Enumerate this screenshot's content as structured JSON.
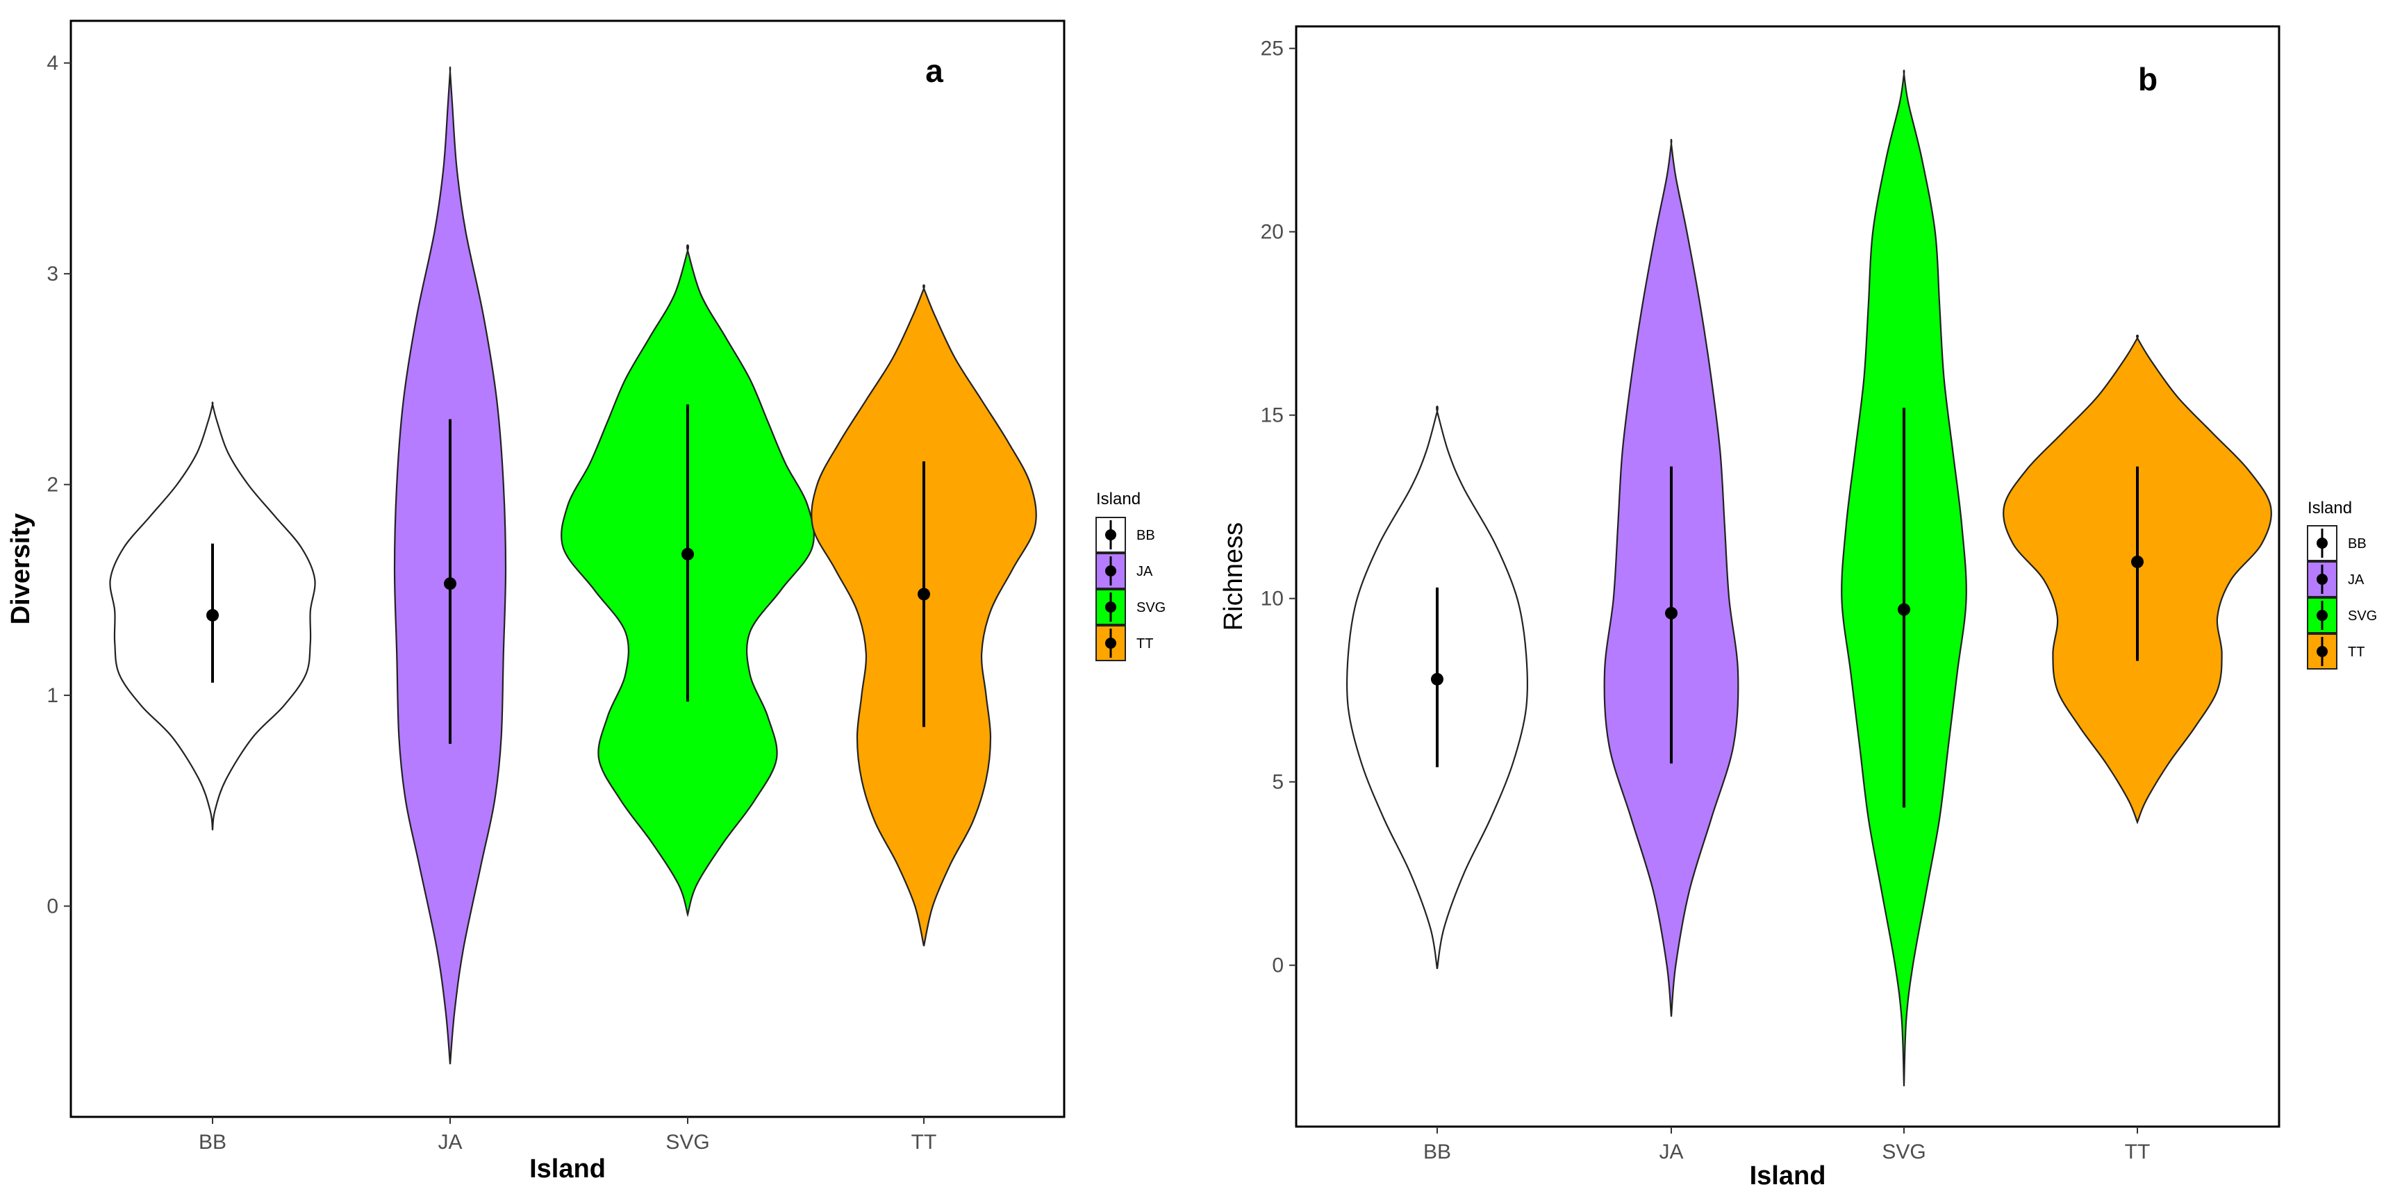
{
  "chart_data": [
    {
      "type": "violin",
      "panel_label": "a",
      "xlabel": "Island",
      "ylabel": "Diversity",
      "categories": [
        "BB",
        "JA",
        "SVG",
        "TT"
      ],
      "colors": [
        "#ffffff",
        "#b57cff",
        "#00ff00",
        "#ffa500"
      ],
      "ylim": [
        -1.0,
        4.2
      ],
      "yticks": [
        0,
        1,
        2,
        3,
        4
      ],
      "ytick_labels": [
        "0",
        "1",
        "2",
        "3",
        "4"
      ],
      "series": [
        {
          "name": "BB",
          "mean": 1.38,
          "err_low": 1.06,
          "err_high": 1.72,
          "min": 0.36,
          "max": 2.38,
          "profile": [
            [
              0.36,
              0.0
            ],
            [
              0.45,
              0.01
            ],
            [
              0.6,
              0.06
            ],
            [
              0.8,
              0.18
            ],
            [
              0.95,
              0.32
            ],
            [
              1.1,
              0.42
            ],
            [
              1.25,
              0.44
            ],
            [
              1.4,
              0.44
            ],
            [
              1.55,
              0.46
            ],
            [
              1.7,
              0.4
            ],
            [
              1.85,
              0.28
            ],
            [
              2.0,
              0.16
            ],
            [
              2.15,
              0.07
            ],
            [
              2.3,
              0.02
            ],
            [
              2.38,
              0.0
            ]
          ]
        },
        {
          "name": "JA",
          "mean": 1.53,
          "err_low": 0.77,
          "err_high": 2.31,
          "min": -0.75,
          "max": 3.96,
          "profile": [
            [
              -0.75,
              0.0
            ],
            [
              -0.5,
              0.02
            ],
            [
              -0.2,
              0.06
            ],
            [
              0.2,
              0.14
            ],
            [
              0.5,
              0.2
            ],
            [
              0.8,
              0.23
            ],
            [
              1.2,
              0.24
            ],
            [
              1.6,
              0.25
            ],
            [
              2.0,
              0.24
            ],
            [
              2.4,
              0.21
            ],
            [
              2.8,
              0.15
            ],
            [
              3.2,
              0.07
            ],
            [
              3.5,
              0.03
            ],
            [
              3.8,
              0.01
            ],
            [
              3.96,
              0.0
            ]
          ]
        },
        {
          "name": "SVG",
          "mean": 1.67,
          "err_low": 0.97,
          "err_high": 2.38,
          "min": -0.04,
          "max": 3.11,
          "profile": [
            [
              -0.04,
              0.0
            ],
            [
              0.1,
              0.04
            ],
            [
              0.3,
              0.16
            ],
            [
              0.5,
              0.3
            ],
            [
              0.7,
              0.4
            ],
            [
              0.9,
              0.36
            ],
            [
              1.1,
              0.28
            ],
            [
              1.3,
              0.28
            ],
            [
              1.5,
              0.42
            ],
            [
              1.7,
              0.56
            ],
            [
              1.9,
              0.54
            ],
            [
              2.1,
              0.44
            ],
            [
              2.3,
              0.36
            ],
            [
              2.5,
              0.28
            ],
            [
              2.7,
              0.17
            ],
            [
              2.9,
              0.06
            ],
            [
              3.11,
              0.0
            ]
          ]
        },
        {
          "name": "TT",
          "mean": 1.48,
          "err_low": 0.85,
          "err_high": 2.11,
          "min": -0.19,
          "max": 2.93,
          "profile": [
            [
              -0.19,
              0.0
            ],
            [
              0.0,
              0.04
            ],
            [
              0.2,
              0.12
            ],
            [
              0.4,
              0.22
            ],
            [
              0.6,
              0.28
            ],
            [
              0.8,
              0.3
            ],
            [
              1.0,
              0.28
            ],
            [
              1.2,
              0.26
            ],
            [
              1.4,
              0.3
            ],
            [
              1.6,
              0.4
            ],
            [
              1.8,
              0.5
            ],
            [
              2.0,
              0.48
            ],
            [
              2.2,
              0.38
            ],
            [
              2.4,
              0.26
            ],
            [
              2.6,
              0.14
            ],
            [
              2.8,
              0.05
            ],
            [
              2.93,
              0.0
            ]
          ]
        }
      ]
    },
    {
      "type": "violin",
      "panel_label": "b",
      "xlabel": "Island",
      "ylabel": "Richness",
      "categories": [
        "BB",
        "JA",
        "SVG",
        "TT"
      ],
      "colors": [
        "#ffffff",
        "#b57cff",
        "#00ff00",
        "#ffa500"
      ],
      "ylim": [
        -4.4,
        25.6
      ],
      "yticks": [
        0,
        5,
        10,
        15,
        20,
        25
      ],
      "ytick_labels": [
        "0",
        "5",
        "10",
        "15",
        "20",
        "25"
      ],
      "series": [
        {
          "name": "BB",
          "mean": 7.8,
          "err_low": 5.4,
          "err_high": 10.3,
          "min": -0.1,
          "max": 15.1,
          "profile": [
            [
              -0.1,
              0.0
            ],
            [
              1.0,
              0.03
            ],
            [
              2.5,
              0.12
            ],
            [
              4.0,
              0.24
            ],
            [
              5.5,
              0.34
            ],
            [
              7.0,
              0.4
            ],
            [
              8.5,
              0.4
            ],
            [
              10.0,
              0.36
            ],
            [
              11.5,
              0.26
            ],
            [
              13.0,
              0.12
            ],
            [
              14.0,
              0.05
            ],
            [
              15.1,
              0.0
            ]
          ]
        },
        {
          "name": "JA",
          "mean": 9.6,
          "err_low": 5.5,
          "err_high": 13.6,
          "min": -1.4,
          "max": 22.4,
          "profile": [
            [
              -1.4,
              0.0
            ],
            [
              0.0,
              0.02
            ],
            [
              2.0,
              0.08
            ],
            [
              4.0,
              0.18
            ],
            [
              6.0,
              0.28
            ],
            [
              8.0,
              0.3
            ],
            [
              10.0,
              0.26
            ],
            [
              12.0,
              0.24
            ],
            [
              14.0,
              0.22
            ],
            [
              16.0,
              0.18
            ],
            [
              18.0,
              0.13
            ],
            [
              20.0,
              0.07
            ],
            [
              21.5,
              0.02
            ],
            [
              22.4,
              0.0
            ]
          ]
        },
        {
          "name": "SVG",
          "mean": 9.7,
          "err_low": 4.3,
          "err_high": 15.2,
          "min": -3.3,
          "max": 24.3,
          "profile": [
            [
              -3.3,
              0.0
            ],
            [
              -1.5,
              0.01
            ],
            [
              0.0,
              0.04
            ],
            [
              2.0,
              0.1
            ],
            [
              4.0,
              0.16
            ],
            [
              6.0,
              0.2
            ],
            [
              8.0,
              0.24
            ],
            [
              10.0,
              0.28
            ],
            [
              12.0,
              0.26
            ],
            [
              14.0,
              0.22
            ],
            [
              16.0,
              0.18
            ],
            [
              18.0,
              0.16
            ],
            [
              20.0,
              0.14
            ],
            [
              22.0,
              0.08
            ],
            [
              23.5,
              0.02
            ],
            [
              24.3,
              0.0
            ]
          ]
        },
        {
          "name": "TT",
          "mean": 11.0,
          "err_low": 8.3,
          "err_high": 13.6,
          "min": 3.9,
          "max": 17.1,
          "profile": [
            [
              3.9,
              0.0
            ],
            [
              4.5,
              0.04
            ],
            [
              5.5,
              0.14
            ],
            [
              6.5,
              0.26
            ],
            [
              7.5,
              0.36
            ],
            [
              8.5,
              0.38
            ],
            [
              9.5,
              0.36
            ],
            [
              10.5,
              0.42
            ],
            [
              11.5,
              0.56
            ],
            [
              12.5,
              0.6
            ],
            [
              13.5,
              0.5
            ],
            [
              14.5,
              0.34
            ],
            [
              15.5,
              0.18
            ],
            [
              16.5,
              0.06
            ],
            [
              17.1,
              0.0
            ]
          ]
        }
      ]
    }
  ],
  "legend": {
    "title": "Island",
    "items": [
      {
        "label": "BB",
        "color": "#ffffff"
      },
      {
        "label": "JA",
        "color": "#b57cff"
      },
      {
        "label": "SVG",
        "color": "#00ff00"
      },
      {
        "label": "TT",
        "color": "#ffa500"
      }
    ]
  }
}
